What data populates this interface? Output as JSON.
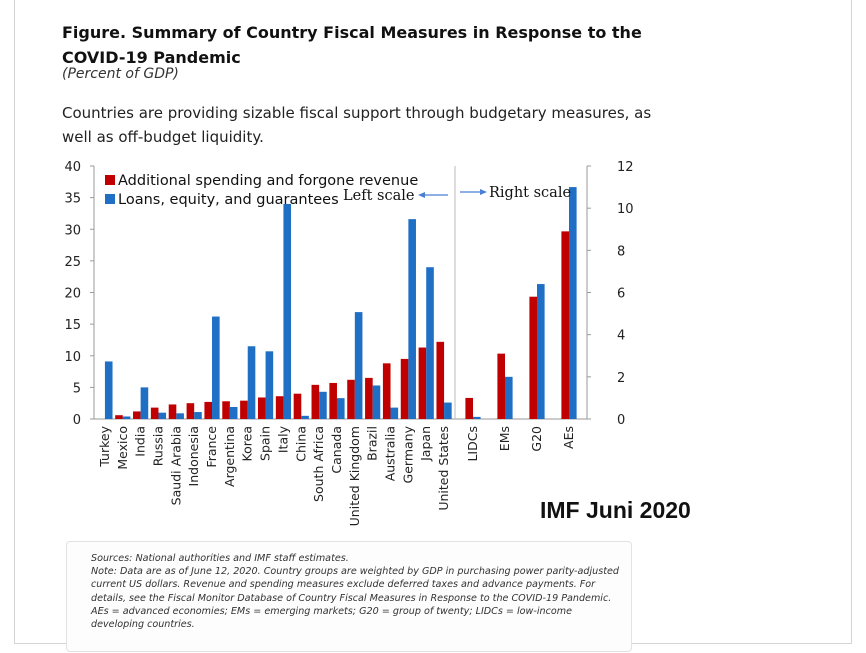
{
  "figure": {
    "title": "Figure. Summary of Country Fiscal Measures in Response to the COVID-19 Pandemic",
    "subtitle": "(Percent of GDP)",
    "intro": "Countries are providing sizable fiscal support through budgetary measures, as well as off-budget liquidity.",
    "watermark": "IMF Juni 2020",
    "sources": "Sources: National authorities and IMF staff estimates.",
    "note": "Note: Data are as of June 12, 2020. Country groups are weighted by GDP in purchasing power parity-adjusted current US dollars. Revenue and spending measures exclude deferred taxes and advance payments. For details, see the Fiscal Monitor Database of Country Fiscal Measures in Response to the COVID-19 Pandemic. AEs = advanced economies; EMs = emerging markets; G20 = group of twenty; LIDCs = low-income developing countries."
  },
  "colors": {
    "spending": "#c00000",
    "loans": "#1f6fc4",
    "annotation_arrow": "#4a7fd4"
  },
  "chart_data": {
    "type": "bar",
    "legend_position": "top-left",
    "grid": false,
    "series_names": [
      "Additional spending and forgone revenue",
      "Loans, equity, and guarantees"
    ],
    "annotations": [
      "Left scale",
      "Right scale"
    ],
    "left_panel": {
      "axis": "left",
      "ylim": [
        0,
        40
      ],
      "yticks": [
        "0",
        "5",
        "10",
        "15",
        "20",
        "25",
        "30",
        "35",
        "40"
      ],
      "categories": [
        "Turkey",
        "Mexico",
        "India",
        "Russia",
        "Saudi Arabia",
        "Indonesia",
        "France",
        "Argentina",
        "Korea",
        "Spain",
        "Italy",
        "China",
        "South Africa",
        "Canada",
        "United Kingdom",
        "Brazil",
        "Australia",
        "Germany",
        "Japan",
        "United States"
      ],
      "series": [
        {
          "name": "Additional spending and forgone revenue",
          "values": [
            0,
            0.6,
            1.2,
            1.8,
            2.3,
            2.5,
            2.7,
            2.8,
            2.9,
            3.4,
            3.6,
            4.0,
            5.4,
            5.7,
            6.2,
            6.5,
            8.8,
            9.5,
            11.3,
            12.2
          ]
        },
        {
          "name": "Loans, equity, and guarantees",
          "values": [
            9.1,
            0.4,
            5.0,
            1.0,
            0.9,
            1.1,
            16.2,
            1.9,
            11.5,
            10.7,
            34.0,
            0.5,
            4.3,
            3.3,
            16.9,
            5.3,
            1.8,
            31.6,
            24.0,
            2.6
          ]
        }
      ]
    },
    "right_panel": {
      "axis": "right",
      "ylim": [
        0,
        12
      ],
      "yticks": [
        "0",
        "2",
        "4",
        "6",
        "8",
        "10",
        "12"
      ],
      "categories": [
        "LIDCs",
        "EMs",
        "G20",
        "AEs"
      ],
      "series": [
        {
          "name": "Additional spending and forgone revenue",
          "values": [
            1.0,
            3.1,
            5.8,
            8.9
          ]
        },
        {
          "name": "Loans, equity, and guarantees",
          "values": [
            0.1,
            2.0,
            6.4,
            11.0
          ]
        }
      ]
    }
  }
}
